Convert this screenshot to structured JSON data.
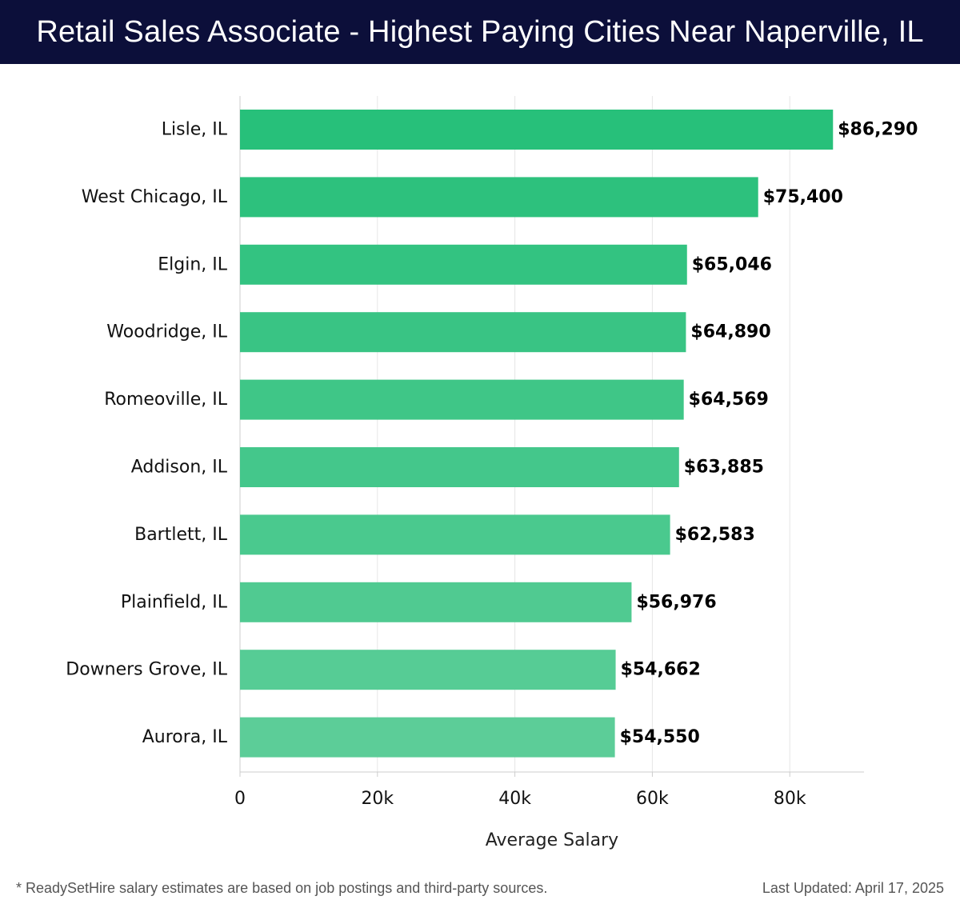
{
  "header": {
    "title": "Retail Sales Associate - Highest Paying Cities Near Naperville, IL"
  },
  "chart_data": {
    "type": "bar",
    "orientation": "horizontal",
    "categories": [
      "Lisle, IL",
      "West Chicago, IL",
      "Elgin, IL",
      "Woodridge, IL",
      "Romeoville, IL",
      "Addison, IL",
      "Bartlett, IL",
      "Plainfield, IL",
      "Downers Grove, IL",
      "Aurora, IL"
    ],
    "values": [
      86290,
      75400,
      65046,
      64890,
      64569,
      63885,
      62583,
      56976,
      54662,
      54550
    ],
    "value_labels": [
      "$86,290",
      "$75,400",
      "$65,046",
      "$64,890",
      "$64,569",
      "$63,885",
      "$62,583",
      "$56,976",
      "$54,662",
      "$54,550"
    ],
    "xlabel": "Average Salary",
    "ylabel": "",
    "xlim": [
      0,
      90800
    ],
    "x_ticks": [
      0,
      20000,
      40000,
      60000,
      80000
    ],
    "x_tick_labels": [
      "0",
      "20k",
      "40k",
      "60k",
      "80k"
    ],
    "grid": true,
    "bar_color_top": "#27c07a",
    "bar_color_bottom": "#5ccd98"
  },
  "colors": {
    "header_bg": "#0c0f3a",
    "grid": "#e6e6e6",
    "axis": "#cccccc"
  },
  "footer": {
    "note": "* ReadySetHire salary estimates are based on job postings and third-party sources.",
    "updated": "Last Updated: April 17, 2025"
  }
}
